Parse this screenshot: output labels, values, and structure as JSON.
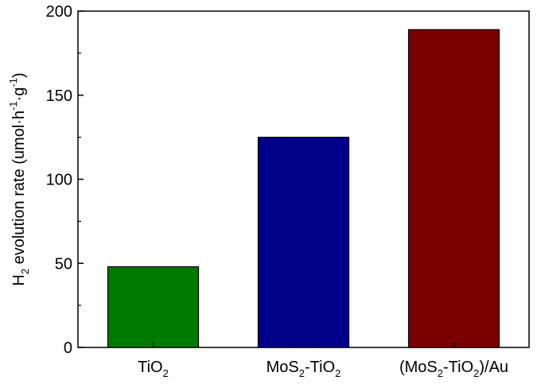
{
  "chart_data": {
    "type": "bar",
    "categories": [
      {
        "label": "TiO",
        "sub": "2",
        "suffix": ""
      },
      {
        "label": "MoS",
        "sub": "2",
        "suffix": "-TiO",
        "sub2": "2"
      },
      {
        "label": "(MoS",
        "sub": "2",
        "suffix": "-TiO",
        "sub2": "2",
        "tail": ")/Au"
      }
    ],
    "values": [
      48,
      125,
      189
    ],
    "colors": [
      "#007a00",
      "#00008b",
      "#7a0000"
    ],
    "ylabel": {
      "main": "H",
      "sub": "2",
      "text": " evolution rate (umol·h",
      "sup1": "-1",
      "mid": "·g",
      "sup2": "-1",
      "end": ")"
    },
    "xlabel": "",
    "ylim": [
      0,
      200
    ],
    "yticks": [
      0,
      50,
      100,
      150,
      200
    ],
    "grid": false,
    "legend": "none"
  }
}
